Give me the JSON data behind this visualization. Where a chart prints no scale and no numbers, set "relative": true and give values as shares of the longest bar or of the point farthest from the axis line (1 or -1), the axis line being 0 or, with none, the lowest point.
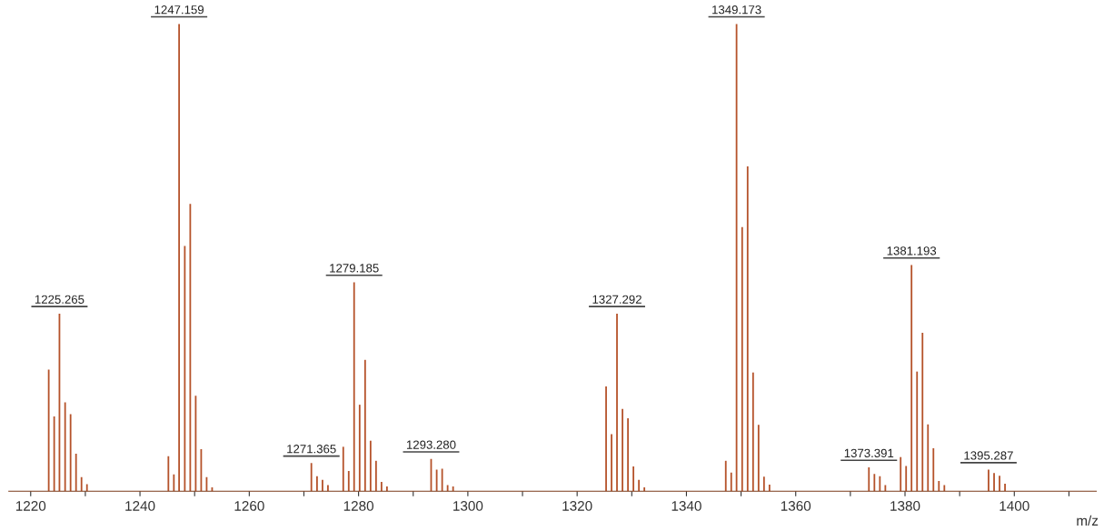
{
  "chart_data": {
    "type": "bar",
    "relative": true,
    "xlabel": "m/z",
    "xlim": [
      1216,
      1415
    ],
    "xticks": [
      1220,
      {
        "value": 1230,
        "label": null
      },
      1240,
      {
        "value": 1250,
        "label": null
      },
      1260,
      {
        "value": 1270,
        "label": null
      },
      1280,
      {
        "value": 1290,
        "label": null
      },
      1300,
      {
        "value": 1310,
        "label": null
      },
      1320,
      {
        "value": 1330,
        "label": null
      },
      1340,
      {
        "value": 1350,
        "label": null
      },
      1360,
      {
        "value": 1370,
        "label": null
      },
      1380,
      {
        "value": 1390,
        "label": null
      },
      1400,
      {
        "value": 1410,
        "label": null
      }
    ],
    "grid": false,
    "legend": false,
    "series": [
      {
        "color": "#b5522a",
        "x": [
          1223.3,
          1224.3,
          1225.265,
          1226.3,
          1227.3,
          1228.3,
          1229.3,
          1230.3,
          1245.2,
          1246.2,
          1247.159,
          1248.2,
          1249.2,
          1250.2,
          1251.2,
          1252.2,
          1253.2,
          1271.365,
          1272.4,
          1273.4,
          1274.4,
          1277.2,
          1278.2,
          1279.185,
          1280.2,
          1281.2,
          1282.2,
          1283.2,
          1284.2,
          1285.2,
          1293.28,
          1294.3,
          1295.3,
          1296.3,
          1297.3,
          1325.3,
          1326.3,
          1327.292,
          1328.3,
          1329.3,
          1330.3,
          1331.3,
          1332.3,
          1347.2,
          1348.2,
          1349.173,
          1350.2,
          1351.2,
          1352.2,
          1353.2,
          1354.2,
          1355.2,
          1373.391,
          1374.4,
          1375.4,
          1376.4,
          1379.2,
          1380.2,
          1381.193,
          1382.2,
          1383.2,
          1384.2,
          1385.2,
          1386.2,
          1387.2,
          1395.287,
          1396.3,
          1397.3,
          1398.3
        ],
        "values": [
          0.26,
          0.16,
          0.38,
          0.19,
          0.165,
          0.08,
          0.03,
          0.015,
          0.075,
          0.036,
          1.0,
          0.525,
          0.615,
          0.204,
          0.09,
          0.03,
          0.008,
          0.06,
          0.032,
          0.024,
          0.013,
          0.095,
          0.043,
          0.447,
          0.185,
          0.281,
          0.108,
          0.065,
          0.02,
          0.01,
          0.069,
          0.046,
          0.048,
          0.013,
          0.01,
          0.224,
          0.122,
          0.38,
          0.176,
          0.156,
          0.053,
          0.024,
          0.008,
          0.065,
          0.04,
          1.0,
          0.565,
          0.695,
          0.254,
          0.142,
          0.031,
          0.014,
          0.051,
          0.037,
          0.032,
          0.013,
          0.073,
          0.054,
          0.484,
          0.256,
          0.339,
          0.143,
          0.092,
          0.022,
          0.013,
          0.046,
          0.039,
          0.033,
          0.016
        ]
      }
    ],
    "annotations": [
      {
        "text": "1225.265",
        "x": 1225.265,
        "y": 0.38
      },
      {
        "text": "1247.159",
        "x": 1247.159,
        "y": 1.0
      },
      {
        "text": "1271.365",
        "x": 1271.365,
        "y": 0.06
      },
      {
        "text": "1279.185",
        "x": 1279.185,
        "y": 0.447
      },
      {
        "text": "1293.280",
        "x": 1293.28,
        "y": 0.069
      },
      {
        "text": "1327.292",
        "x": 1327.292,
        "y": 0.38
      },
      {
        "text": "1349.173",
        "x": 1349.173,
        "y": 1.0
      },
      {
        "text": "1373.391",
        "x": 1373.391,
        "y": 0.051
      },
      {
        "text": "1381.193",
        "x": 1381.193,
        "y": 0.484
      },
      {
        "text": "1395.287",
        "x": 1395.287,
        "y": 0.046
      }
    ]
  }
}
